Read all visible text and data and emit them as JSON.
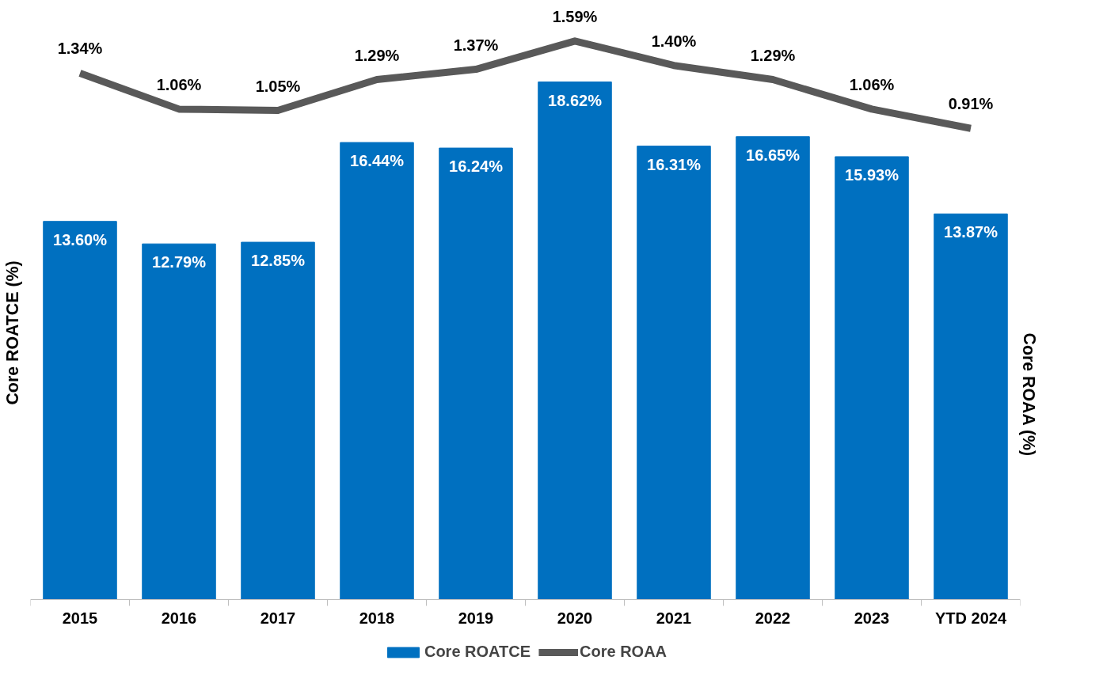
{
  "chart_data": {
    "type": "bar",
    "categories": [
      "2015",
      "2016",
      "2017",
      "2018",
      "2019",
      "2020",
      "2021",
      "2022",
      "2023",
      "YTD 2024"
    ],
    "ylabel": "Core ROATCE (%)",
    "y2label": "Core ROAA (%)",
    "legend": "bottom",
    "grid": false,
    "tick_labels": "x",
    "series": [
      {
        "name": "Core ROATCE",
        "type": "bar",
        "color": "#0070c0",
        "values": [
          13.6,
          12.79,
          12.85,
          16.44,
          16.24,
          18.62,
          16.31,
          16.65,
          15.93,
          13.87
        ],
        "value_labels": [
          "13.60%",
          "12.79%",
          "12.85%",
          "16.44%",
          "16.24%",
          "18.62%",
          "16.31%",
          "16.65%",
          "15.93%",
          "13.87%"
        ]
      },
      {
        "name": "Core ROAA",
        "type": "line",
        "axis": "y2",
        "color": "#595959",
        "values": [
          1.34,
          1.06,
          1.05,
          1.29,
          1.37,
          1.59,
          1.4,
          1.29,
          1.06,
          0.91
        ],
        "value_labels": [
          "1.34%",
          "1.06%",
          "1.05%",
          "1.29%",
          "1.37%",
          "1.59%",
          "1.40%",
          "1.29%",
          "1.06%",
          "0.91%"
        ]
      }
    ]
  }
}
